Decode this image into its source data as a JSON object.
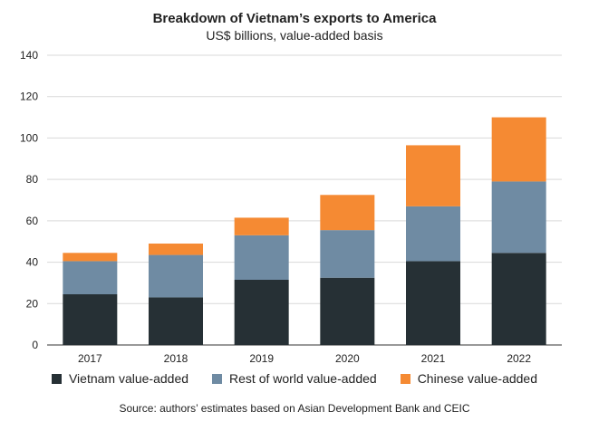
{
  "chart_data": {
    "type": "bar",
    "stacked": true,
    "title": "Breakdown of Vietnam’s exports to America",
    "subtitle": "US$ billions, value-added basis",
    "categories": [
      "2017",
      "2018",
      "2019",
      "2020",
      "2021",
      "2022"
    ],
    "series": [
      {
        "name": "Vietnam value-added",
        "color": "#263035",
        "values": [
          24.5,
          23,
          31.5,
          32.5,
          40.5,
          44.5
        ]
      },
      {
        "name": "Rest of world value-added",
        "color": "#6f8ba3",
        "values": [
          16,
          20.5,
          21.5,
          23,
          26.5,
          34.5
        ]
      },
      {
        "name": "Chinese value-added",
        "color": "#f58a33",
        "values": [
          4,
          5.5,
          8.5,
          17,
          29.5,
          31
        ]
      }
    ],
    "ylim": [
      0,
      140
    ],
    "yticks": [
      0,
      20,
      40,
      60,
      80,
      100,
      120,
      140
    ],
    "grid": true,
    "legend_position": "bottom",
    "source": "Source: authors’ estimates based on Asian Development Bank and CEIC"
  }
}
